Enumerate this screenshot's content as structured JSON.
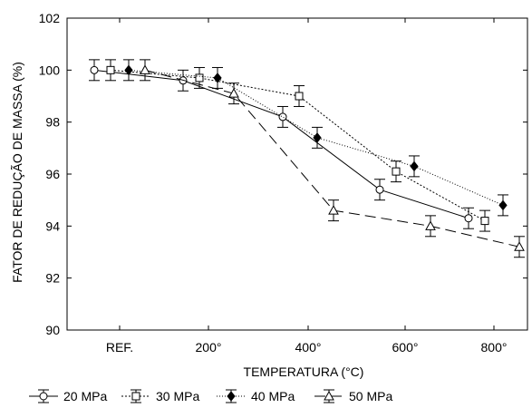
{
  "chart_data": {
    "type": "line",
    "title": "",
    "xlabel": "TEMPERATURA (°C)",
    "ylabel": "FATOR DE REDUÇÃO DE MASSA (%)",
    "categories": [
      "REF.",
      "200°",
      "400°",
      "600°",
      "800°"
    ],
    "ylim": [
      90,
      102
    ],
    "yticks": [
      "90",
      "92",
      "94",
      "96",
      "98",
      "100",
      "102"
    ],
    "grid": false,
    "legend_position": "bottom",
    "series": [
      {
        "name": "20 MPa",
        "marker": "open-circle",
        "dash": "solid",
        "points": [
          {
            "x": "REF.",
            "y": 100.0,
            "err": 0.4
          },
          {
            "x": "200°",
            "y": 99.6,
            "err": 0.4
          },
          {
            "x": "400°",
            "y": 98.2,
            "err": 0.4
          },
          {
            "x": "600°",
            "y": 95.4,
            "err": 0.4
          },
          {
            "x": "800°",
            "y": 94.3,
            "err": 0.4
          }
        ]
      },
      {
        "name": "30 MPa",
        "marker": "open-square",
        "dash": "dotted",
        "points": [
          {
            "x": "REF.",
            "y": 100.0,
            "err": 0.4
          },
          {
            "x": "200°",
            "y": 99.7,
            "err": 0.4
          },
          {
            "x": "400°",
            "y": 99.0,
            "err": 0.4
          },
          {
            "x": "600°",
            "y": 96.1,
            "err": 0.4
          },
          {
            "x": "800°",
            "y": 94.2,
            "err": 0.4
          }
        ]
      },
      {
        "name": "40 MPa",
        "marker": "filled-diamond",
        "dash": "dotted-fine",
        "points": [
          {
            "x": "REF.",
            "y": 100.0,
            "err": 0.4
          },
          {
            "x": "200°",
            "y": 99.7,
            "err": 0.4
          },
          {
            "x": "400°",
            "y": 97.4,
            "err": 0.4
          },
          {
            "x": "600°",
            "y": 96.3,
            "err": 0.4
          },
          {
            "x": "800°",
            "y": 94.8,
            "err": 0.4
          }
        ]
      },
      {
        "name": "50 MPa",
        "marker": "open-triangle",
        "dash": "long-dash",
        "points": [
          {
            "x": "REF.",
            "y": 100.0,
            "err": 0.4
          },
          {
            "x": "200°",
            "y": 99.1,
            "err": 0.4
          },
          {
            "x": "400°",
            "y": 94.6,
            "err": 0.4
          },
          {
            "x": "600°",
            "y": 94.0,
            "err": 0.4
          },
          {
            "x": "800°",
            "y": 93.2,
            "err": 0.4
          }
        ]
      }
    ]
  }
}
